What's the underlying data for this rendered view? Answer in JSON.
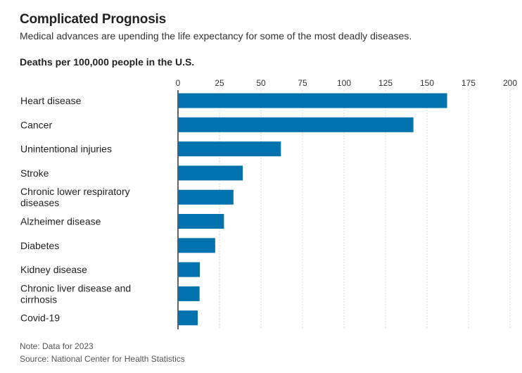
{
  "header": {
    "title": "Complicated Prognosis",
    "subtitle": "Medical advances are upending the life expectancy for some of the most deadly diseases."
  },
  "footer": {
    "note": "Note: Data for 2023",
    "source": "Source: National Center for Health Statistics"
  },
  "colors": {
    "bar": "#0072ae",
    "grid": "#d9d9d9",
    "axis": "#222222",
    "tick_label": "#333333",
    "category_label": "#222222"
  },
  "chart_data": {
    "type": "bar",
    "orientation": "horizontal",
    "title": "Deaths per 100,000 people in the U.S.",
    "categories": [
      "Heart disease",
      "Cancer",
      "Unintentional injuries",
      "Stroke",
      "Chronic lower respiratory diseases",
      "Alzheimer disease",
      "Diabetes",
      "Kidney disease",
      "Chronic liver disease and cirrhosis",
      "Covid-19"
    ],
    "values": [
      162.1,
      141.8,
      62.0,
      39.0,
      33.4,
      27.7,
      22.4,
      13.2,
      13.0,
      11.9
    ],
    "xlim": [
      0,
      200
    ],
    "xticks": [
      0,
      25,
      50,
      75,
      100,
      125,
      150,
      175,
      200
    ],
    "tick_position": "top",
    "grid": true
  }
}
